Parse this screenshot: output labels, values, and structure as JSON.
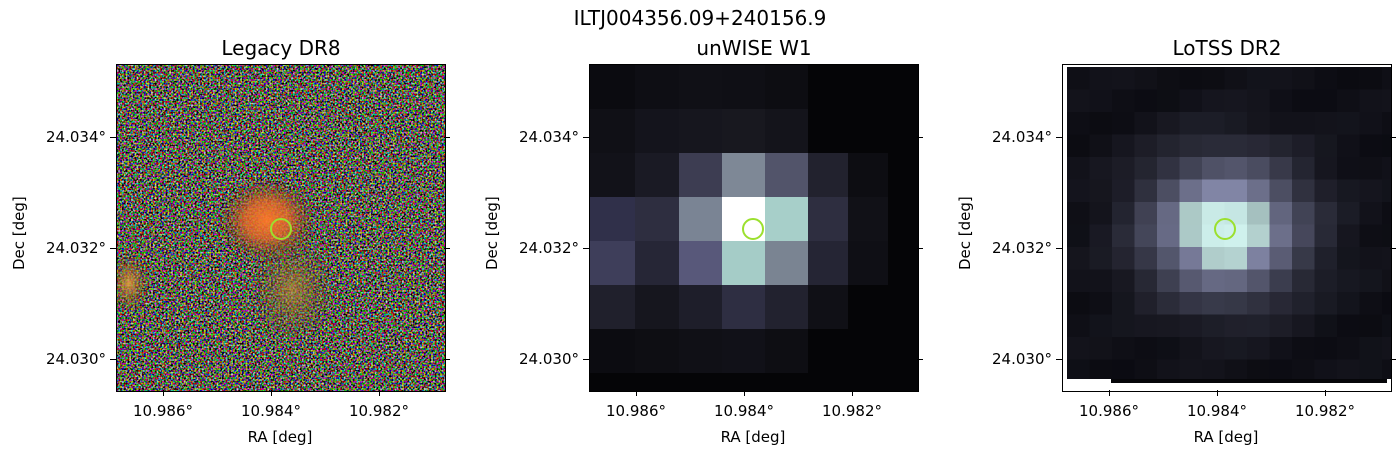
{
  "figure": {
    "suptitle": "ILTJ004356.09+240156.9"
  },
  "panels": [
    {
      "title": "Legacy DR8",
      "xlabel": "RA [deg]",
      "ylabel": "Dec [deg]",
      "xticks": [
        "10.986°",
        "10.984°",
        "10.982°"
      ],
      "yticks": [
        "24.034°",
        "24.032°",
        "24.030°"
      ]
    },
    {
      "title": "unWISE W1",
      "xlabel": "RA [deg]",
      "ylabel": "Dec [deg]",
      "xticks": [
        "10.986°",
        "10.984°",
        "10.982°"
      ],
      "yticks": [
        "24.034°",
        "24.032°",
        "24.030°"
      ]
    },
    {
      "title": "LoTSS DR2",
      "xlabel": "RA [deg]",
      "ylabel": "Dec [deg]",
      "xticks": [
        "10.986°",
        "10.984°",
        "10.982°"
      ],
      "yticks": [
        "24.034°",
        "24.032°",
        "24.030°"
      ]
    }
  ],
  "colors": {
    "marker": "#9be02e"
  }
}
